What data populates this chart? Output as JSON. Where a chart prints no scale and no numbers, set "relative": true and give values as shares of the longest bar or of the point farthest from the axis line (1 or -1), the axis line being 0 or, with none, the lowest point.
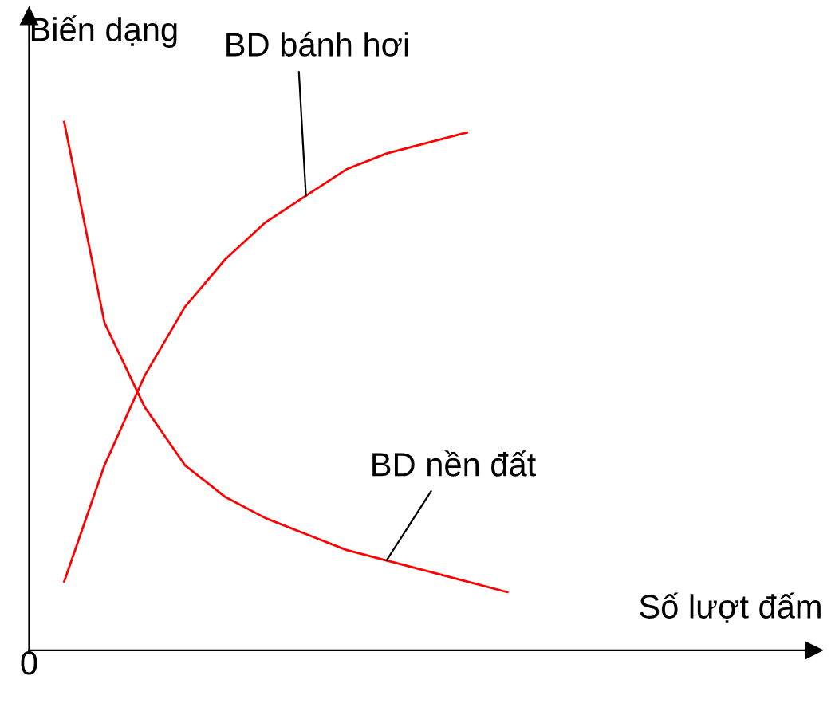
{
  "chart_data": {
    "type": "line",
    "relative": true,
    "xlabel": "Số lượt đấm",
    "ylabel": "Biến dạng",
    "marker": "none",
    "line_style": "solid",
    "categories": [
      null,
      null,
      null,
      null,
      null,
      null,
      null,
      null,
      null,
      null,
      null,
      null
    ],
    "series": [
      {
        "color": "#ff0000",
        "values": [
          0.13,
          0.35,
          0.52,
          0.65,
          0.74,
          0.81,
          0.86,
          0.91,
          0.94,
          0.96,
          0.98,
          null
        ]
      },
      {
        "color": "#ff0000",
        "values": [
          1,
          0.62,
          0.46,
          0.35,
          0.29,
          0.25,
          0.22,
          0.19,
          0.17,
          0.15,
          0.13,
          0.11
        ]
      }
    ],
    "annotations": [
      "BD bánh hơi",
      "BD nền đất",
      "0"
    ]
  }
}
